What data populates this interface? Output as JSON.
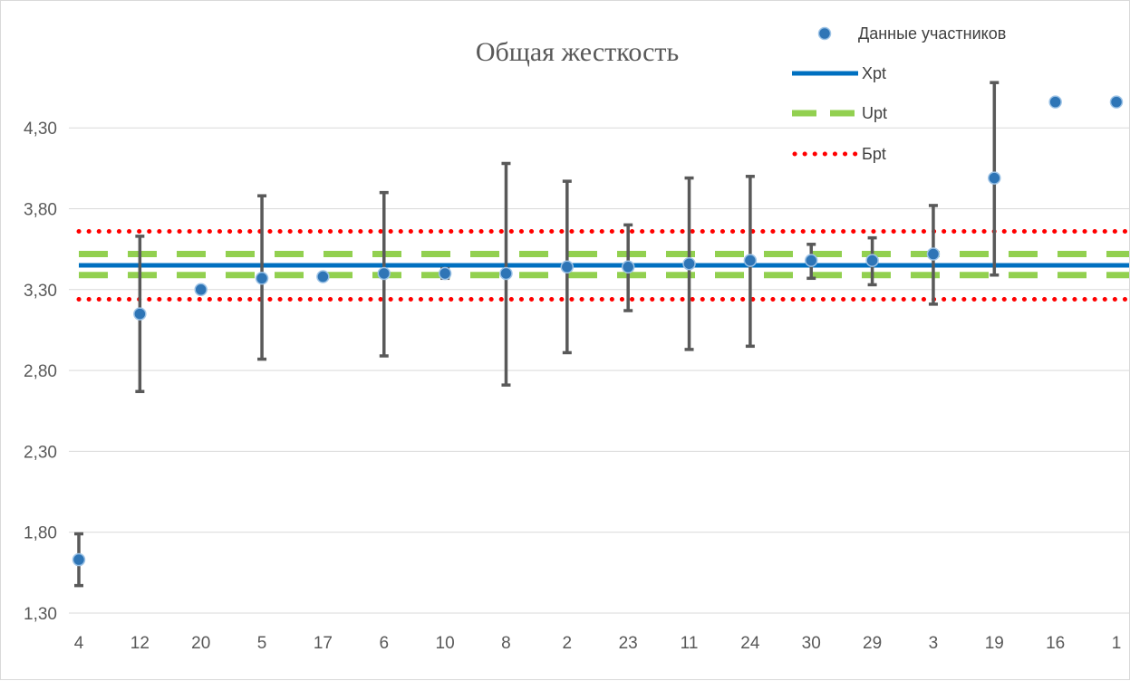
{
  "chart_data": {
    "type": "scatter",
    "title": "Общая жесткость",
    "categories": [
      "4",
      "12",
      "20",
      "5",
      "17",
      "6",
      "10",
      "8",
      "2",
      "23",
      "11",
      "24",
      "30",
      "29",
      "3",
      "19",
      "16",
      "1"
    ],
    "y_tick_labels": [
      "1,30",
      "1,80",
      "2,30",
      "2,80",
      "3,30",
      "3,80",
      "4,30"
    ],
    "ylim": [
      1.3,
      4.8
    ],
    "grid": true,
    "legend_position": "top-right",
    "series": [
      {
        "name": "Данные участников",
        "values": [
          1.63,
          3.15,
          3.3,
          3.37,
          3.38,
          3.4,
          3.4,
          3.4,
          3.44,
          3.44,
          3.46,
          3.48,
          3.48,
          3.48,
          3.52,
          3.99,
          4.46,
          4.46
        ],
        "err_low": [
          1.47,
          2.67,
          null,
          2.87,
          null,
          2.89,
          3.37,
          2.71,
          2.91,
          3.17,
          2.93,
          2.95,
          3.37,
          3.33,
          3.21,
          3.39,
          null,
          null
        ],
        "err_high": [
          1.79,
          3.63,
          null,
          3.88,
          null,
          3.9,
          3.43,
          4.08,
          3.97,
          3.7,
          3.99,
          4.0,
          3.58,
          3.62,
          3.82,
          4.58,
          null,
          null
        ],
        "color": "#2E75B6"
      },
      {
        "name": "Xpt",
        "value": 3.45,
        "color": "#0070C0",
        "style": "solid"
      },
      {
        "name": "Upt",
        "values": [
          3.39,
          3.52
        ],
        "color": "#92D050",
        "style": "dashed"
      },
      {
        "name": "Бpt",
        "values": [
          3.24,
          3.66
        ],
        "color": "#FF0000",
        "style": "dotted"
      }
    ]
  }
}
